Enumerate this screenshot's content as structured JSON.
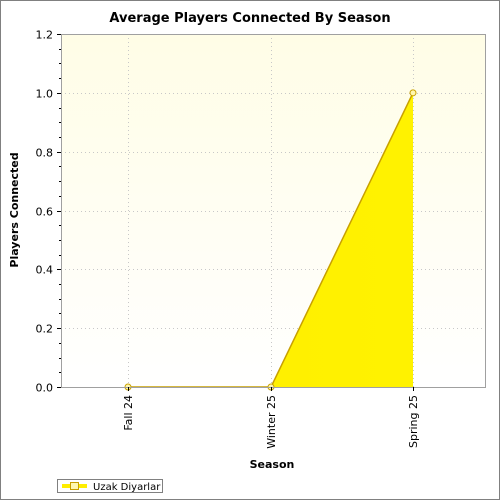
{
  "colors": {
    "plot_bg_top": "#fffde6",
    "plot_bg_bottom": "#ffffff",
    "fill_top": "#ffee00",
    "fill_bottom": "#fff200",
    "line": "#c8a000",
    "marker_fill": "#fff7b0",
    "marker_stroke": "#c8a000",
    "grid": "#c8c8c8",
    "axis": "#000000"
  },
  "chart_data": {
    "type": "area",
    "title": "Average Players Connected By Season",
    "xlabel": "Season",
    "ylabel": "Players Connected",
    "categories": [
      "Fall 24",
      "Winter 25",
      "Spring 25"
    ],
    "series": [
      {
        "name": "Uzak Diyarlar",
        "values": [
          0.0,
          0.0,
          1.0
        ]
      }
    ],
    "ylim": [
      0.0,
      1.2
    ],
    "yticks": [
      "0.0",
      "0.2",
      "0.4",
      "0.6",
      "0.8",
      "1.0",
      "1.2"
    ],
    "grid": true,
    "legend_position": "bottom-left"
  }
}
